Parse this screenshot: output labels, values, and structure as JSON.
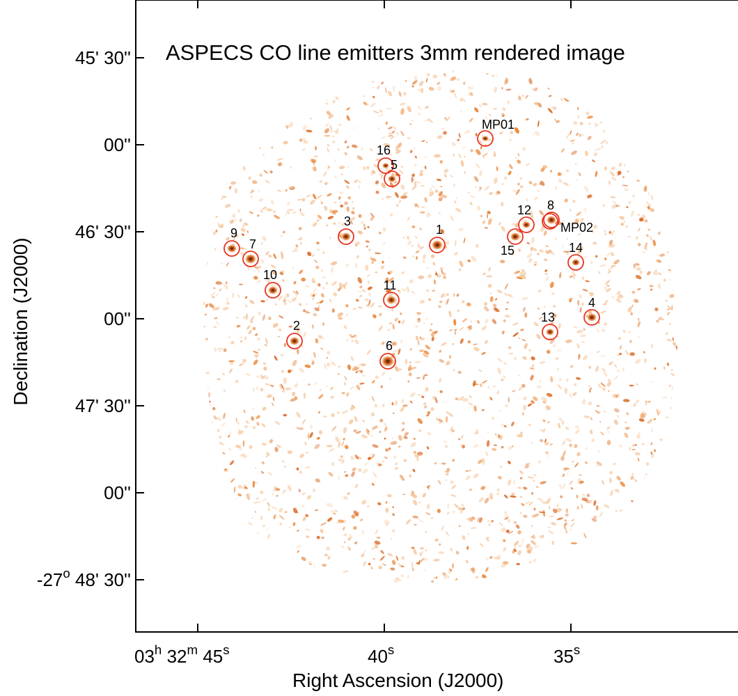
{
  "title": "ASPECS CO line emitters 3mm rendered image",
  "x_axis": {
    "label": "Right Ascension (J2000)",
    "ticks": [
      {
        "h": "03",
        "hsup": "h",
        "m": "32",
        "msup": "m",
        "s": "45",
        "ssup": "s"
      },
      {
        "s": "40",
        "ssup": "s"
      },
      {
        "s": "35",
        "ssup": "s"
      }
    ]
  },
  "y_axis": {
    "label": "Declination (J2000)",
    "ticks": [
      {
        "text": "45' 30''"
      },
      {
        "text": "00''"
      },
      {
        "text": "46' 30''"
      },
      {
        "text": "00''"
      },
      {
        "text": "47' 30''"
      },
      {
        "text": "00''"
      },
      {
        "deg": "-27",
        "degsup": "o",
        "text": "48' 30''"
      }
    ]
  },
  "colors": {
    "map_light": "#f6c9a0",
    "map_mid": "#e8802f",
    "map_dark": "#a33b08",
    "circle": "#e8321e"
  },
  "sources": [
    {
      "id": "MP01",
      "label": "MP01"
    },
    {
      "id": "16",
      "label": "16"
    },
    {
      "id": "5",
      "label": "5"
    },
    {
      "id": "12",
      "label": "12"
    },
    {
      "id": "8",
      "label": "8"
    },
    {
      "id": "MP02",
      "label": "MP02"
    },
    {
      "id": "15",
      "label": "15"
    },
    {
      "id": "3",
      "label": "3"
    },
    {
      "id": "1",
      "label": "1"
    },
    {
      "id": "9",
      "label": "9"
    },
    {
      "id": "7",
      "label": "7"
    },
    {
      "id": "14",
      "label": "14"
    },
    {
      "id": "10",
      "label": "10"
    },
    {
      "id": "11",
      "label": "11"
    },
    {
      "id": "4",
      "label": "4"
    },
    {
      "id": "13",
      "label": "13"
    },
    {
      "id": "2",
      "label": "2"
    },
    {
      "id": "6",
      "label": "6"
    }
  ]
}
